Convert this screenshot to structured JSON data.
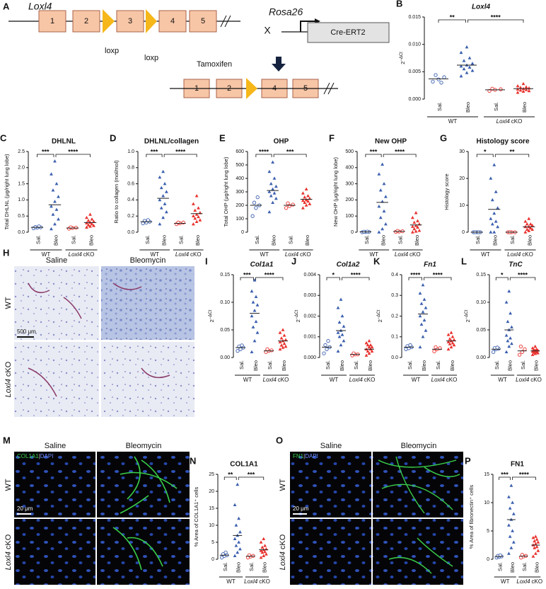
{
  "diagram": {
    "letter": "A",
    "gene": "Loxl4",
    "exons": [
      "1",
      "2",
      "3",
      "4",
      "5"
    ],
    "loxp": [
      "loxp",
      "loxp"
    ],
    "cross": "X",
    "locus": "Rosa26",
    "cre": "Cre-ERT2",
    "treatment": "Tamoxifen",
    "deleted_exons": [
      "1",
      "2",
      "4",
      "5"
    ]
  },
  "groups": {
    "categories": [
      "Sal.",
      "Bleo",
      "Sal.",
      "Bleo"
    ],
    "wt": "WT",
    "cko_gene": "Loxl4",
    "cko_suffix": "cKO",
    "colors": [
      "#3b5fae",
      "#3b5fae",
      "#e8322e",
      "#e8322e"
    ],
    "markers": [
      "circle-open",
      "triangle",
      "circle-open",
      "triangle"
    ]
  },
  "plots": [
    {
      "letter": "B",
      "title": "Loxl4",
      "italic": true,
      "ylabel": "2",
      "ylabel_sup": "−ΔCt",
      "ylim": [
        0,
        0.015
      ],
      "yticks": [
        {
          "value": 0,
          "label": "0.000"
        },
        0.005,
        {
          "value": 0.01,
          "label": "0.010"
        },
        0.015
      ],
      "values": [
        [
          0.0032,
          0.0036,
          0.004,
          0.0044,
          0.003
        ],
        [
          0.0042,
          0.0048,
          0.0052,
          0.0055,
          0.0058,
          0.006,
          0.0062,
          0.0065,
          0.007,
          0.0075,
          0.0085,
          0.0095
        ],
        [
          0.0015,
          0.0017,
          0.0018,
          0.0019
        ],
        [
          0.0012,
          0.0014,
          0.0015,
          0.0016,
          0.0017,
          0.0018,
          0.0019,
          0.002,
          0.0021,
          0.0022,
          0.0024,
          0.0028
        ]
      ],
      "means": [
        0.0037,
        0.0062,
        0.0017,
        0.0019
      ],
      "sig": [
        {
          "groups": [
            0,
            1
          ],
          "label": "**"
        },
        {
          "groups": [
            1,
            3
          ],
          "label": "****"
        }
      ]
    },
    {
      "letter": "C",
      "title": "DHLNL",
      "italic": false,
      "ylabel": "Total DHLNL (μg/right lung lobe)",
      "ylim": [
        0,
        2.5
      ],
      "yticks": [
        {
          "value": 0,
          "label": "0.0"
        },
        0.5,
        {
          "value": 1,
          "label": "1.0"
        },
        1.5,
        {
          "value": 2,
          "label": "2.0"
        },
        2.5
      ],
      "values": [
        [
          0.12,
          0.14,
          0.15,
          0.16,
          0.18
        ],
        [
          0.1,
          0.25,
          0.4,
          0.55,
          0.7,
          0.8,
          0.95,
          1.1,
          1.3,
          1.5,
          1.8,
          2.2
        ],
        [
          0.11,
          0.13,
          0.14,
          0.15
        ],
        [
          0.15,
          0.18,
          0.2,
          0.22,
          0.25,
          0.28,
          0.3,
          0.33,
          0.36,
          0.4,
          0.45,
          0.55
        ]
      ],
      "means": [
        0.15,
        0.85,
        0.13,
        0.3
      ],
      "sig": [
        {
          "groups": [
            0,
            1
          ],
          "label": "***"
        },
        {
          "groups": [
            1,
            3
          ],
          "label": "****"
        }
      ]
    },
    {
      "letter": "D",
      "title": "DHLNL/collagen",
      "italic": false,
      "ylabel": "Ratio to collagen (mol/mol)",
      "ylim": [
        0,
        1
      ],
      "yticks": [
        {
          "value": 0,
          "label": "0.0"
        },
        0.2,
        0.4,
        0.6,
        0.8,
        {
          "value": 1,
          "label": "1.0"
        }
      ],
      "values": [
        [
          0.11,
          0.12,
          0.13,
          0.14,
          0.15
        ],
        [
          0.1,
          0.18,
          0.25,
          0.3,
          0.35,
          0.4,
          0.45,
          0.5,
          0.55,
          0.6,
          0.68,
          0.75
        ],
        [
          0.1,
          0.11,
          0.12,
          0.12
        ],
        [
          0.1,
          0.13,
          0.15,
          0.17,
          0.19,
          0.2,
          0.22,
          0.24,
          0.27,
          0.3,
          0.35,
          0.45
        ]
      ],
      "means": [
        0.13,
        0.42,
        0.11,
        0.23
      ],
      "sig": [
        {
          "groups": [
            0,
            1
          ],
          "label": "***"
        },
        {
          "groups": [
            1,
            3
          ],
          "label": "****"
        }
      ]
    },
    {
      "letter": "E",
      "title": "OHP",
      "italic": false,
      "ylabel": "Total OHP (μg/right lung lobe)",
      "ylim": [
        0,
        600
      ],
      "yticks": [
        0,
        100,
        200,
        300,
        400,
        500,
        600
      ],
      "values": [
        [
          120,
          180,
          200,
          220,
          260
        ],
        [
          150,
          220,
          250,
          270,
          290,
          300,
          320,
          340,
          360,
          400,
          450,
          520
        ],
        [
          180,
          195,
          205,
          215
        ],
        [
          180,
          200,
          210,
          220,
          230,
          235,
          240,
          250,
          260,
          270,
          290,
          320
        ]
      ],
      "means": [
        200,
        310,
        200,
        245
      ],
      "sig": [
        {
          "groups": [
            0,
            1
          ],
          "label": "****"
        },
        {
          "groups": [
            1,
            3
          ],
          "label": "***"
        }
      ]
    },
    {
      "letter": "F",
      "title": "New OHP",
      "italic": false,
      "ylabel": "New OHP (μg/right lung lobe)",
      "ylim": [
        0,
        500
      ],
      "yticks": [
        0,
        100,
        200,
        300,
        400,
        500
      ],
      "values": [
        [
          0,
          1,
          2,
          3,
          4
        ],
        [
          0,
          20,
          50,
          90,
          130,
          160,
          190,
          220,
          260,
          300,
          360,
          420
        ],
        [
          2,
          4,
          6,
          8
        ],
        [
          0,
          5,
          10,
          20,
          30,
          35,
          40,
          50,
          60,
          70,
          90,
          120
        ]
      ],
      "means": [
        2,
        185,
        5,
        45
      ],
      "sig": [
        {
          "groups": [
            0,
            1
          ],
          "label": "***"
        },
        {
          "groups": [
            1,
            3
          ],
          "label": "****"
        }
      ]
    },
    {
      "letter": "G",
      "title": "Histology score",
      "italic": false,
      "ylabel": "Histology score",
      "ylim": [
        0,
        30
      ],
      "yticks": [
        0,
        10,
        20,
        30
      ],
      "values": [
        [
          0,
          0,
          0,
          0,
          0
        ],
        [
          0,
          0,
          2,
          3,
          4,
          5,
          7,
          9,
          12,
          15,
          20,
          25
        ],
        [
          0,
          0,
          0,
          0
        ],
        [
          0,
          0.5,
          1,
          1,
          1.5,
          2,
          2,
          2.5,
          3,
          3,
          4,
          5
        ]
      ],
      "means": [
        0,
        8.5,
        0,
        2
      ],
      "sig": [
        {
          "groups": [
            0,
            1
          ],
          "label": "*"
        },
        {
          "groups": [
            1,
            3
          ],
          "label": "**"
        }
      ]
    },
    {
      "letter": "I",
      "title": "Col1a1",
      "italic": true,
      "ylabel": "2",
      "ylabel_sup": "−ΔCt",
      "ylim": [
        0,
        0.15
      ],
      "yticks": [
        {
          "value": 0,
          "label": "0.00"
        },
        0.05,
        {
          "value": 0.1,
          "label": "0.10"
        },
        0.15
      ],
      "values": [
        [
          0.012,
          0.015,
          0.018,
          0.02,
          0.022
        ],
        [
          0.01,
          0.03,
          0.045,
          0.055,
          0.065,
          0.075,
          0.085,
          0.095,
          0.1,
          0.11,
          0.12,
          0.14
        ],
        [
          0.01,
          0.012,
          0.013,
          0.015
        ],
        [
          0.015,
          0.018,
          0.02,
          0.022,
          0.025,
          0.028,
          0.03,
          0.032,
          0.035,
          0.04,
          0.045,
          0.05
        ]
      ],
      "means": [
        0.018,
        0.08,
        0.012,
        0.03
      ],
      "sig": [
        {
          "groups": [
            0,
            1
          ],
          "label": "***"
        },
        {
          "groups": [
            1,
            3
          ],
          "label": "****"
        }
      ]
    },
    {
      "letter": "J",
      "title": "Col1a2",
      "italic": true,
      "ylabel": "2",
      "ylabel_sup": "−ΔCt",
      "ylim": [
        0,
        0.004
      ],
      "yticks": [
        {
          "value": 0,
          "label": "0.000"
        },
        0.001,
        0.002,
        0.003,
        0.004
      ],
      "values": [
        [
          0.0002,
          0.0004,
          0.0005,
          0.0006,
          0.0008
        ],
        [
          0.0003,
          0.0006,
          0.0008,
          0.001,
          0.0011,
          0.0012,
          0.0013,
          0.0015,
          0.0017,
          0.002,
          0.0024,
          0.0028
        ],
        [
          0.0001,
          0.00015,
          0.00015,
          0.0002
        ],
        [
          0.0001,
          0.0002,
          0.0003,
          0.0003,
          0.0004,
          0.0004,
          0.0005,
          0.0005,
          0.0006,
          0.0006,
          0.0007,
          0.0008
        ]
      ],
      "means": [
        0.0005,
        0.0013,
        0.00015,
        0.0004
      ],
      "sig": [
        {
          "groups": [
            0,
            1
          ],
          "label": "*"
        },
        {
          "groups": [
            1,
            3
          ],
          "label": "****"
        }
      ]
    },
    {
      "letter": "K",
      "title": "Fn1",
      "italic": true,
      "ylabel": "2",
      "ylabel_sup": "−ΔCt",
      "ylim": [
        0,
        0.4
      ],
      "yticks": [
        {
          "value": 0,
          "label": "0.0"
        },
        0.1,
        0.2,
        0.3,
        0.4
      ],
      "values": [
        [
          0.04,
          0.045,
          0.05,
          0.055,
          0.06
        ],
        [
          0.05,
          0.1,
          0.13,
          0.16,
          0.18,
          0.2,
          0.22,
          0.24,
          0.26,
          0.28,
          0.31,
          0.35
        ],
        [
          0.03,
          0.04,
          0.045,
          0.05
        ],
        [
          0.04,
          0.05,
          0.06,
          0.065,
          0.07,
          0.075,
          0.08,
          0.085,
          0.09,
          0.1,
          0.11,
          0.12
        ]
      ],
      "means": [
        0.05,
        0.21,
        0.04,
        0.08
      ],
      "sig": [
        {
          "groups": [
            0,
            1
          ],
          "label": "****"
        },
        {
          "groups": [
            1,
            3
          ],
          "label": "****"
        }
      ]
    },
    {
      "letter": "L",
      "title": "TnC",
      "italic": true,
      "ylabel": "2",
      "ylabel_sup": "−ΔCt",
      "ylim": [
        0,
        0.15
      ],
      "yticks": [
        {
          "value": 0,
          "label": "0.00"
        },
        0.05,
        {
          "value": 0.1,
          "label": "0.10"
        },
        0.15
      ],
      "values": [
        [
          0.01,
          0.015,
          0.016,
          0.017,
          0.018
        ],
        [
          0.01,
          0.02,
          0.025,
          0.03,
          0.035,
          0.04,
          0.05,
          0.055,
          0.065,
          0.08,
          0.1,
          0.12
        ],
        [
          0.005,
          0.01,
          0.015,
          0.02
        ],
        [
          0.005,
          0.007,
          0.008,
          0.009,
          0.01,
          0.011,
          0.012,
          0.013,
          0.014,
          0.015,
          0.017,
          0.02
        ]
      ],
      "means": [
        0.015,
        0.05,
        0.012,
        0.012
      ],
      "sig": [
        {
          "groups": [
            0,
            1
          ],
          "label": "*"
        },
        {
          "groups": [
            1,
            3
          ],
          "label": "****"
        }
      ]
    },
    {
      "letter": "N",
      "title": "COL1A1",
      "italic": false,
      "ylabel": "% Area of COL1A1⁺ cells",
      "ylim": [
        0,
        25
      ],
      "yticks": [
        0,
        5,
        10,
        15,
        20,
        25
      ],
      "values": [
        [
          0.5,
          1,
          1.2,
          1.5,
          2
        ],
        [
          1,
          2,
          3,
          4,
          5,
          6,
          7,
          8,
          10,
          12,
          16,
          22
        ],
        [
          0.5,
          0.8,
          1,
          1.2
        ],
        [
          0.5,
          1,
          1.5,
          2,
          2.2,
          2.5,
          2.8,
          3,
          3.5,
          4,
          5,
          6
        ]
      ],
      "means": [
        1.2,
        7,
        0.9,
        2.8
      ],
      "sig": [
        {
          "groups": [
            0,
            1
          ],
          "label": "**"
        },
        {
          "groups": [
            1,
            3
          ],
          "label": "***"
        }
      ]
    },
    {
      "letter": "P",
      "title": "FN1",
      "italic": false,
      "ylabel": "% Area of fibronectin⁺ cells",
      "ylim": [
        0,
        15
      ],
      "yticks": [
        0,
        5,
        10,
        15
      ],
      "values": [
        [
          0.3,
          0.4,
          0.5,
          0.6,
          0.7
        ],
        [
          1,
          2,
          3,
          4,
          5,
          6,
          7,
          8,
          9,
          10,
          11,
          13
        ],
        [
          0.3,
          0.5,
          0.6,
          0.8
        ],
        [
          0.5,
          1,
          1.5,
          2,
          2.2,
          2.5,
          2.7,
          3,
          3.2,
          3.5,
          3.8,
          4
        ]
      ],
      "means": [
        0.5,
        7,
        0.55,
        2.5
      ],
      "sig": [
        {
          "groups": [
            0,
            1
          ],
          "label": "***"
        },
        {
          "groups": [
            1,
            3
          ],
          "label": "****"
        }
      ]
    }
  ],
  "histology": {
    "letter": "H",
    "columns": [
      "Saline",
      "Bleomycin"
    ],
    "scale": "500 μm"
  },
  "if_col1a1": {
    "letter": "M",
    "columns": [
      "Saline",
      "Bleomycin"
    ],
    "stain": "COL1A1",
    "sep": "|",
    "counter": "DAPI",
    "scale": "20 μm"
  },
  "if_fn1": {
    "letter": "O",
    "columns": [
      "Saline",
      "Bleomycin"
    ],
    "stain": "FN1",
    "sep": "|",
    "counter": "DAPI",
    "scale": "20 μm"
  }
}
